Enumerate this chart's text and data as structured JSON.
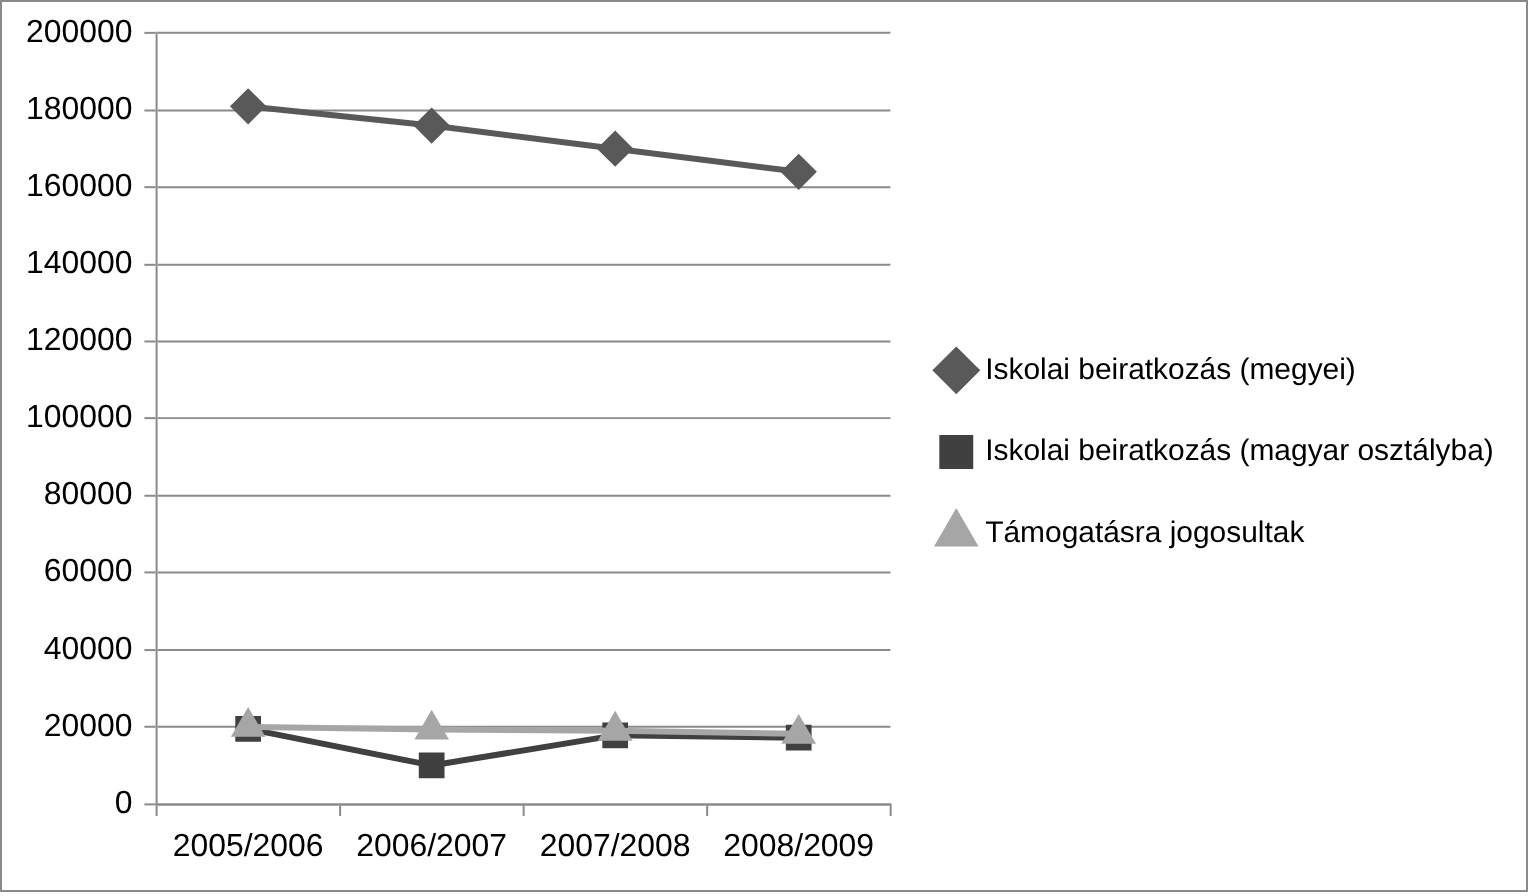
{
  "chart_data": {
    "type": "line",
    "categories": [
      "2005/2006",
      "2006/2007",
      "2007/2008",
      "2008/2009"
    ],
    "series": [
      {
        "name": "Iskolai beiratkozás (megyei)",
        "color": "#595959",
        "marker": "diamond",
        "values": [
          181000,
          176000,
          170000,
          164000
        ]
      },
      {
        "name": "Iskolai beiratkozás (magyar osztályba)",
        "color": "#404040",
        "marker": "square",
        "values": [
          19500,
          10000,
          17800,
          17200
        ]
      },
      {
        "name": "Támogatásra jogosultak",
        "color": "#a6a6a6",
        "marker": "triangle",
        "values": [
          20000,
          19300,
          19000,
          18200
        ]
      }
    ],
    "ylim": [
      0,
      200000
    ],
    "yticks": [
      0,
      20000,
      40000,
      60000,
      80000,
      100000,
      120000,
      140000,
      160000,
      180000,
      200000
    ],
    "grid": "y",
    "legend": "right",
    "line_style": "solid"
  }
}
